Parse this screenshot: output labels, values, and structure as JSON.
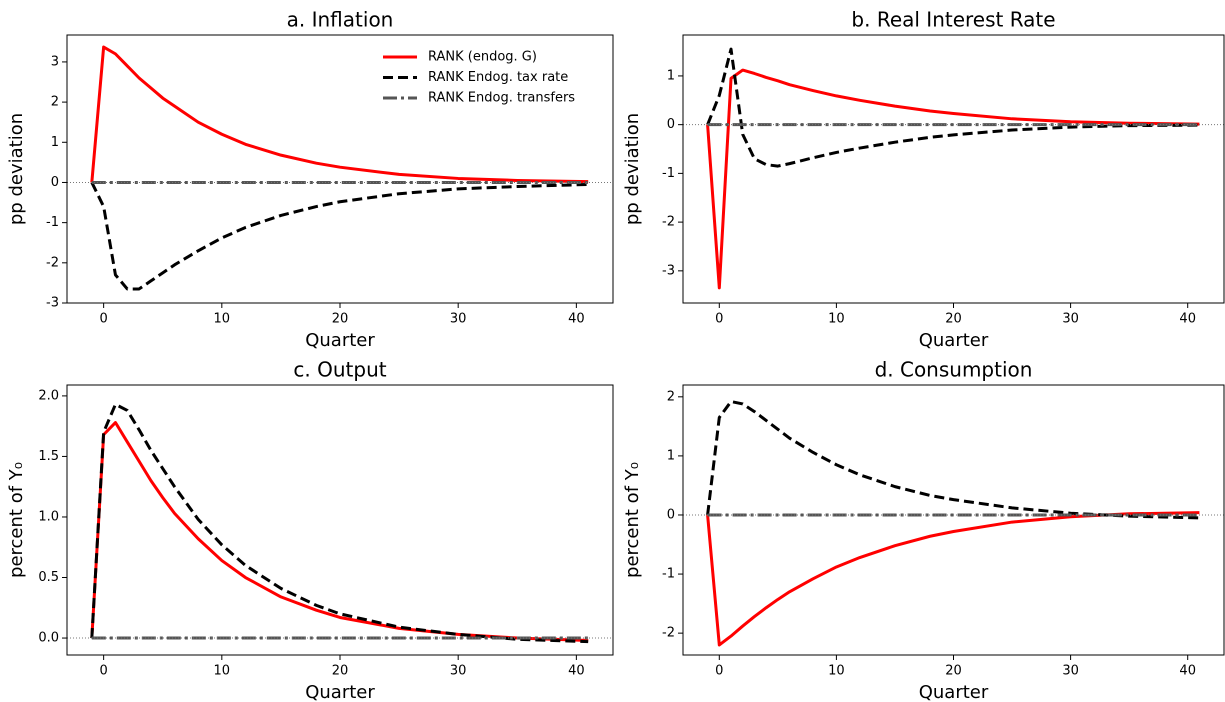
{
  "chart_data": [
    {
      "type": "line",
      "title": "a. Inflation",
      "xlabel": "Quarter",
      "ylabel": "pp deviation",
      "x": [
        -1,
        0,
        1,
        2,
        3,
        4,
        5,
        6,
        8,
        10,
        12,
        15,
        18,
        20,
        25,
        30,
        35,
        41
      ],
      "xlim": [
        -3.1,
        43.1
      ],
      "xticks": [
        0,
        10,
        20,
        30,
        40
      ],
      "ylim": [
        -3.0,
        3.67
      ],
      "yticks": [
        -3,
        -2,
        -1,
        0,
        1,
        2,
        3
      ],
      "zero_line": true,
      "legend": "upper right",
      "series": [
        {
          "name": "RANK (endog. G)",
          "color": "#ff0000",
          "linestyle": "solid",
          "values": [
            0,
            3.37,
            3.2,
            2.9,
            2.6,
            2.35,
            2.1,
            1.9,
            1.5,
            1.2,
            0.95,
            0.68,
            0.48,
            0.38,
            0.2,
            0.1,
            0.05,
            0.02
          ]
        },
        {
          "name": "RANK Endog. tax rate",
          "color": "#000000",
          "linestyle": "dashed",
          "values": [
            0,
            -0.6,
            -2.3,
            -2.65,
            -2.65,
            -2.45,
            -2.25,
            -2.05,
            -1.7,
            -1.38,
            -1.12,
            -0.82,
            -0.6,
            -0.48,
            -0.28,
            -0.16,
            -0.1,
            -0.05
          ]
        },
        {
          "name": "RANK Endog. transfers",
          "color": "#555555",
          "linestyle": "dashdot",
          "values": [
            0,
            0,
            0,
            0,
            0,
            0,
            0,
            0,
            0,
            0,
            0,
            0,
            0,
            0,
            0,
            0,
            0,
            0
          ]
        }
      ]
    },
    {
      "type": "line",
      "title": "b. Real Interest Rate",
      "xlabel": "Quarter",
      "ylabel": "pp deviation",
      "x": [
        -1,
        0,
        1,
        2,
        3,
        4,
        5,
        6,
        8,
        10,
        12,
        15,
        18,
        20,
        25,
        30,
        35,
        41
      ],
      "xlim": [
        -3.1,
        43.1
      ],
      "xticks": [
        0,
        10,
        20,
        30,
        40
      ],
      "ylim": [
        -3.66,
        1.84
      ],
      "yticks": [
        -3,
        -2,
        -1,
        0,
        1
      ],
      "zero_line": true,
      "series": [
        {
          "color": "#ff0000",
          "linestyle": "solid",
          "values": [
            0,
            -3.35,
            0.95,
            1.12,
            1.05,
            0.97,
            0.9,
            0.82,
            0.7,
            0.59,
            0.5,
            0.38,
            0.28,
            0.23,
            0.12,
            0.06,
            0.03,
            0.01
          ]
        },
        {
          "color": "#000000",
          "linestyle": "dashed",
          "values": [
            0,
            0.6,
            1.55,
            -0.2,
            -0.7,
            -0.82,
            -0.85,
            -0.8,
            -0.68,
            -0.57,
            -0.48,
            -0.36,
            -0.26,
            -0.21,
            -0.11,
            -0.05,
            -0.02,
            -0.01
          ]
        },
        {
          "color": "#555555",
          "linestyle": "dashdot",
          "values": [
            0,
            0,
            0,
            0,
            0,
            0,
            0,
            0,
            0,
            0,
            0,
            0,
            0,
            0,
            0,
            0,
            0,
            0
          ]
        }
      ]
    },
    {
      "type": "line",
      "title": "c. Output",
      "xlabel": "Quarter",
      "ylabel": "percent of Y₀",
      "x": [
        -1,
        0,
        1,
        2,
        3,
        4,
        5,
        6,
        8,
        10,
        12,
        15,
        18,
        20,
        25,
        30,
        35,
        41
      ],
      "xlim": [
        -3.1,
        43.1
      ],
      "xticks": [
        0,
        10,
        20,
        30,
        40
      ],
      "ylim": [
        -0.14,
        2.09
      ],
      "yticks": [
        {
          "value": 0,
          "label": "0.0"
        },
        0.5,
        {
          "value": 1,
          "label": "1.0"
        },
        1.5,
        {
          "value": 2,
          "label": "2.0"
        }
      ],
      "zero_line": true,
      "series": [
        {
          "color": "#ff0000",
          "linestyle": "solid",
          "values": [
            0,
            1.68,
            1.78,
            1.62,
            1.46,
            1.3,
            1.16,
            1.03,
            0.82,
            0.64,
            0.5,
            0.34,
            0.23,
            0.17,
            0.08,
            0.03,
            0.0,
            -0.02
          ]
        },
        {
          "color": "#000000",
          "linestyle": "dashed",
          "values": [
            0,
            1.7,
            1.93,
            1.88,
            1.72,
            1.55,
            1.4,
            1.25,
            0.98,
            0.77,
            0.6,
            0.41,
            0.27,
            0.2,
            0.09,
            0.03,
            -0.01,
            -0.03
          ]
        },
        {
          "color": "#555555",
          "linestyle": "dashdot",
          "values": [
            0,
            0,
            0,
            0,
            0,
            0,
            0,
            0,
            0,
            0,
            0,
            0,
            0,
            0,
            0,
            0,
            0,
            0
          ]
        }
      ]
    },
    {
      "type": "line",
      "title": "d. Consumption",
      "xlabel": "Quarter",
      "ylabel": "percent of Y₀",
      "x": [
        -1,
        0,
        1,
        2,
        3,
        4,
        5,
        6,
        8,
        10,
        12,
        15,
        18,
        20,
        25,
        30,
        35,
        41
      ],
      "xlim": [
        -3.1,
        43.1
      ],
      "xticks": [
        0,
        10,
        20,
        30,
        40
      ],
      "ylim": [
        -2.37,
        2.2
      ],
      "yticks": [
        -2,
        -1,
        0,
        1,
        2
      ],
      "zero_line": true,
      "series": [
        {
          "color": "#ff0000",
          "linestyle": "solid",
          "values": [
            0,
            -2.2,
            -2.05,
            -1.88,
            -1.72,
            -1.57,
            -1.43,
            -1.3,
            -1.08,
            -0.88,
            -0.72,
            -0.52,
            -0.36,
            -0.28,
            -0.12,
            -0.03,
            0.02,
            0.04
          ]
        },
        {
          "color": "#000000",
          "linestyle": "dashed",
          "values": [
            0,
            1.65,
            1.92,
            1.88,
            1.75,
            1.6,
            1.45,
            1.3,
            1.06,
            0.85,
            0.68,
            0.48,
            0.33,
            0.26,
            0.12,
            0.03,
            -0.02,
            -0.05
          ]
        },
        {
          "color": "#555555",
          "linestyle": "dashdot",
          "values": [
            0,
            0,
            0,
            0,
            0,
            0,
            0,
            0,
            0,
            0,
            0,
            0,
            0,
            0,
            0,
            0,
            0,
            0
          ]
        }
      ]
    }
  ]
}
